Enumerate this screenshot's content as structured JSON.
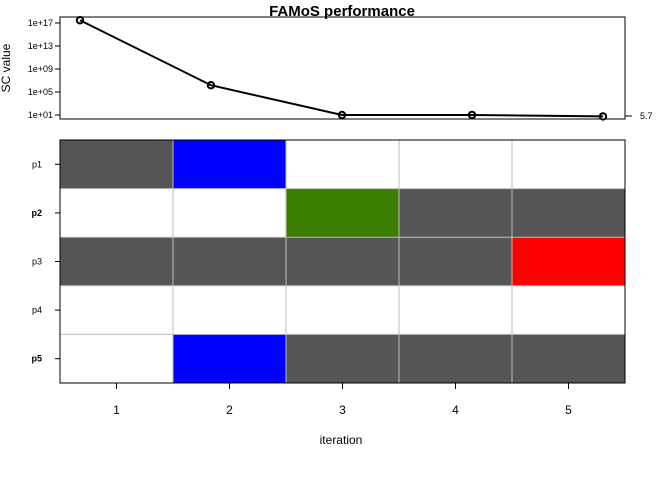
{
  "chart_data": [
    {
      "type": "line",
      "title": "FAMoS performance",
      "ylabel": "SC value",
      "xlabel": "",
      "y_scale": "log10",
      "ylim": [
        1,
        1e+17
      ],
      "y_tick_values": [
        10,
        100000,
        1000000000,
        10000000000000,
        100000000000000000
      ],
      "y_tick_labels": [
        "1e+01",
        "1e+05",
        "1e+09",
        "1e+13",
        "1e+17"
      ],
      "x": [
        1,
        2,
        3,
        4,
        5
      ],
      "values": [
        3e+17,
        1500000.0,
        10,
        10,
        5.7
      ],
      "final_value_label": "5.7",
      "line_color": "#000000",
      "grid": false,
      "legend": "none"
    },
    {
      "type": "heatmap",
      "xlabel": "iteration",
      "ylabel": "",
      "x_categories": [
        "1",
        "2",
        "3",
        "4",
        "5"
      ],
      "y_categories": [
        "p1",
        "p2",
        "p3",
        "p4",
        "p5"
      ],
      "bold_rows": [
        "p2",
        "p5"
      ],
      "colors": {
        "included": "#555555",
        "empty": "#ffffff",
        "added": "#0000ff",
        "removed": "#3a7d00",
        "swapped": "#ff0000",
        "grid": "#bdbdbd"
      },
      "cells": [
        [
          "included",
          "added",
          "empty",
          "empty",
          "empty"
        ],
        [
          "empty",
          "empty",
          "removed",
          "included",
          "included"
        ],
        [
          "included",
          "included",
          "included",
          "included",
          "swapped"
        ],
        [
          "empty",
          "empty",
          "empty",
          "empty",
          "empty"
        ],
        [
          "empty",
          "added",
          "included",
          "included",
          "included"
        ]
      ]
    }
  ]
}
